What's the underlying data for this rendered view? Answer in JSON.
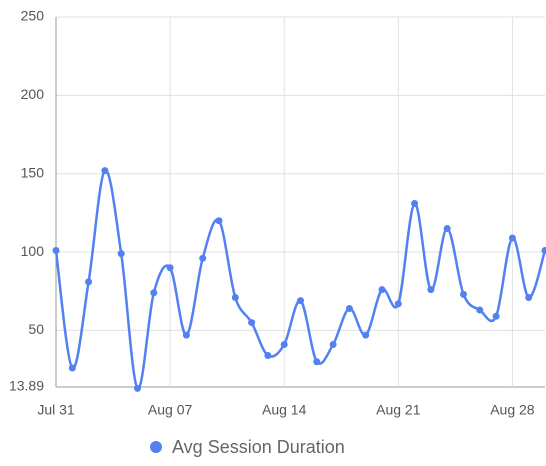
{
  "chart_data": {
    "type": "line",
    "categories": [
      "Jul 31",
      null,
      null,
      null,
      null,
      null,
      null,
      "Aug 07",
      null,
      null,
      null,
      null,
      null,
      null,
      "Aug 14",
      null,
      null,
      null,
      null,
      null,
      null,
      "Aug 21",
      null,
      null,
      null,
      null,
      null,
      null,
      "Aug 28",
      null,
      null
    ],
    "series": [
      {
        "name": "Avg Session Duration",
        "color": "#5381f0",
        "values": [
          101,
          26,
          81,
          152,
          99,
          13,
          74,
          90,
          47,
          96,
          120,
          71,
          55,
          34,
          41,
          69,
          30,
          41,
          64,
          47,
          76,
          67,
          131,
          76,
          115,
          73,
          63,
          59,
          109,
          71,
          101
        ]
      }
    ],
    "ylim": [
      13.89,
      250
    ],
    "yticks": [
      13.89,
      50,
      100,
      150,
      200,
      250
    ],
    "grid": true,
    "smooth": true,
    "legend": "bottom"
  }
}
